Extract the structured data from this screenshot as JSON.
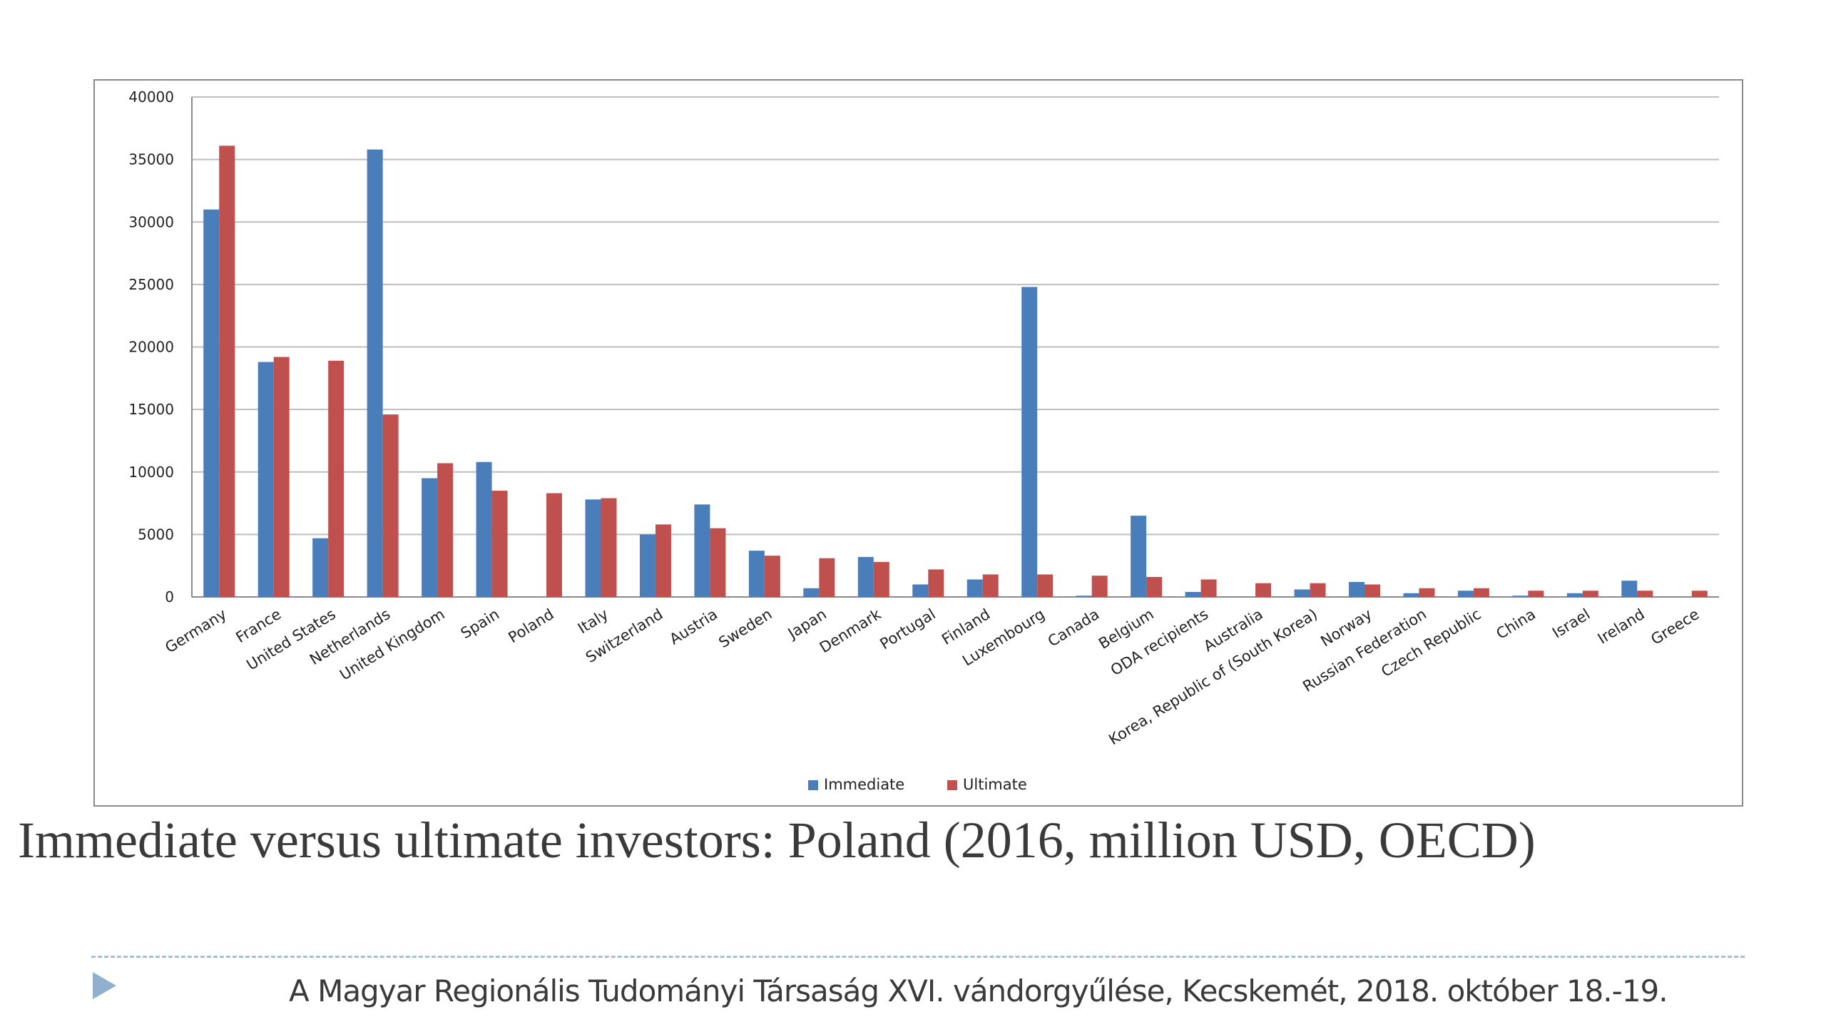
{
  "slide": {
    "title": "Immediate versus ultimate investors: Poland (2016, million USD, OECD)",
    "footer": "A Magyar Regionális Tudományi Társaság XVI. vándorgyűlése, Kecskemét, 2018. október 18.-19."
  },
  "chart_data": {
    "type": "bar",
    "categories": [
      "Germany",
      "France",
      "United States",
      "Netherlands",
      "United Kingdom",
      "Spain",
      "Poland",
      "Italy",
      "Switzerland",
      "Austria",
      "Sweden",
      "Japan",
      "Denmark",
      "Portugal",
      "Finland",
      "Luxembourg",
      "Canada",
      "Belgium",
      "ODA recipients",
      "Australia",
      "Korea, Republic of (South Korea)",
      "Norway",
      "Russian Federation",
      "Czech Republic",
      "China",
      "Israel",
      "Ireland",
      "Greece"
    ],
    "series": [
      {
        "name": "Immediate",
        "color": "#4a7ebb",
        "values": [
          31000,
          18800,
          4700,
          35800,
          9500,
          10800,
          0,
          7800,
          5000,
          7400,
          3700,
          700,
          3200,
          1000,
          1400,
          24800,
          100,
          6500,
          400,
          0,
          600,
          1200,
          300,
          500,
          100,
          300,
          1300,
          0
        ]
      },
      {
        "name": "Ultimate",
        "color": "#c0504d",
        "values": [
          36100,
          19200,
          18900,
          14600,
          10700,
          8500,
          8300,
          7900,
          5800,
          5500,
          3300,
          3100,
          2800,
          2200,
          1800,
          1800,
          1700,
          1600,
          1400,
          1100,
          1100,
          1000,
          700,
          700,
          500,
          500,
          500,
          500
        ]
      }
    ],
    "yticks": [
      "0",
      "5000",
      "10000",
      "15000",
      "20000",
      "25000",
      "30000",
      "35000",
      "40000"
    ],
    "ylim": [
      0,
      40000
    ],
    "grid": true,
    "legend_position": "bottom"
  }
}
